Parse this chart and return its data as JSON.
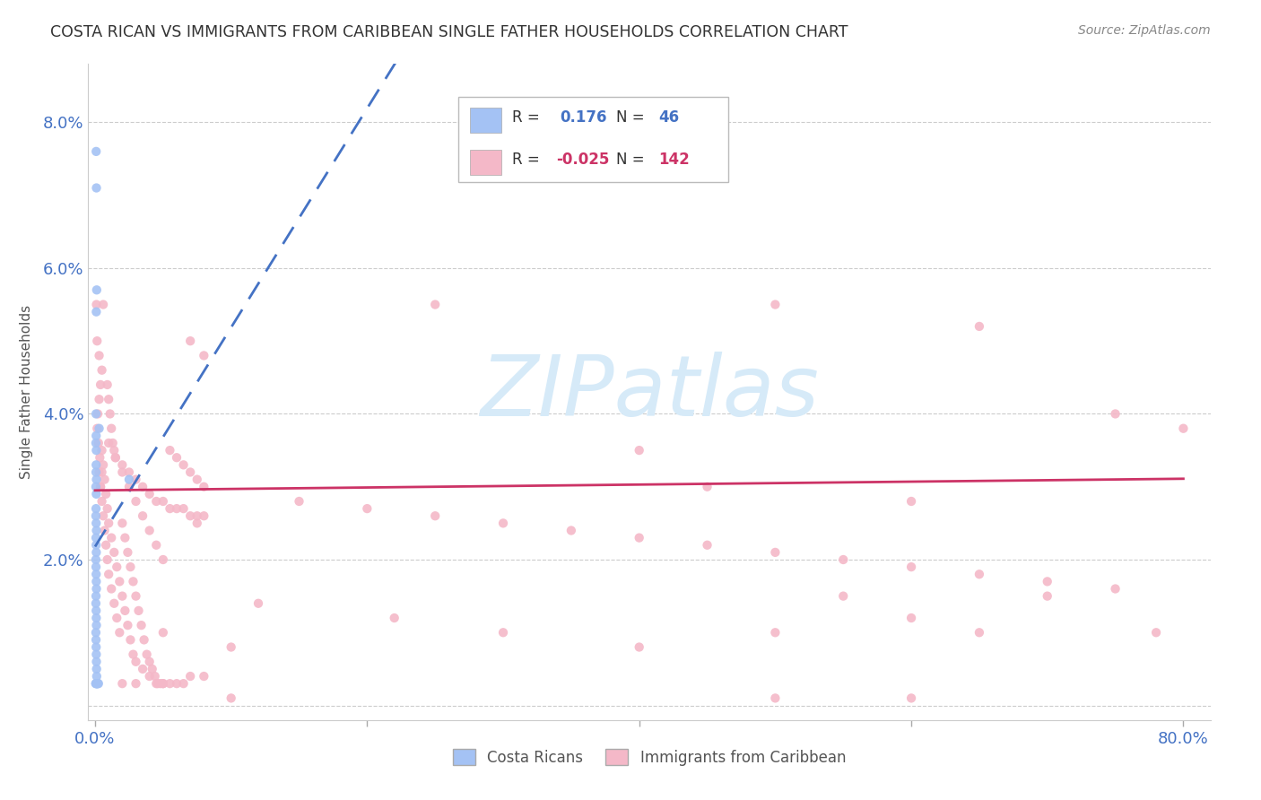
{
  "title": "COSTA RICAN VS IMMIGRANTS FROM CARIBBEAN SINGLE FATHER HOUSEHOLDS CORRELATION CHART",
  "source": "Source: ZipAtlas.com",
  "ylabel": "Single Father Households",
  "blue_color": "#a4c2f4",
  "pink_color": "#f4b8c8",
  "blue_line_color": "#4472c4",
  "pink_line_color": "#cc3366",
  "watermark_text": "ZIPatlas",
  "watermark_color": "#d6eaf8",
  "legend_blue_r": "0.176",
  "legend_blue_n": "46",
  "legend_pink_r": "-0.025",
  "legend_pink_n": "142",
  "x_lim": [
    -0.005,
    0.82
  ],
  "y_lim": [
    -0.002,
    0.088
  ],
  "y_ticks": [
    0.0,
    0.02,
    0.04,
    0.06,
    0.08
  ],
  "y_tick_labels": [
    "",
    "2.0%",
    "4.0%",
    "6.0%",
    "8.0%"
  ],
  "x_ticks": [
    0.0,
    0.2,
    0.4,
    0.6,
    0.8
  ],
  "x_tick_labels_show": [
    "0.0%",
    "",
    "",
    "",
    "80.0%"
  ],
  "blue_points": [
    [
      0.0008,
      0.076
    ],
    [
      0.001,
      0.071
    ],
    [
      0.0012,
      0.057
    ],
    [
      0.0009,
      0.054
    ],
    [
      0.0007,
      0.04
    ],
    [
      0.0008,
      0.037
    ],
    [
      0.0006,
      0.036
    ],
    [
      0.0009,
      0.035
    ],
    [
      0.0008,
      0.033
    ],
    [
      0.0007,
      0.032
    ],
    [
      0.001,
      0.031
    ],
    [
      0.0006,
      0.03
    ],
    [
      0.0009,
      0.029
    ],
    [
      0.0007,
      0.027
    ],
    [
      0.0006,
      0.026
    ],
    [
      0.0008,
      0.025
    ],
    [
      0.001,
      0.024
    ],
    [
      0.0007,
      0.023
    ],
    [
      0.0008,
      0.022
    ],
    [
      0.0009,
      0.021
    ],
    [
      0.0006,
      0.02
    ],
    [
      0.0007,
      0.019
    ],
    [
      0.0008,
      0.018
    ],
    [
      0.0009,
      0.017
    ],
    [
      0.001,
      0.016
    ],
    [
      0.0007,
      0.015
    ],
    [
      0.0006,
      0.014
    ],
    [
      0.0008,
      0.013
    ],
    [
      0.0009,
      0.012
    ],
    [
      0.001,
      0.011
    ],
    [
      0.0006,
      0.01
    ],
    [
      0.0007,
      0.009
    ],
    [
      0.0008,
      0.008
    ],
    [
      0.0009,
      0.007
    ],
    [
      0.001,
      0.006
    ],
    [
      0.0011,
      0.005
    ],
    [
      0.0012,
      0.004
    ],
    [
      0.0013,
      0.003
    ],
    [
      0.0014,
      0.003
    ],
    [
      0.0006,
      0.003
    ],
    [
      0.0005,
      0.003
    ],
    [
      0.0015,
      0.003
    ],
    [
      0.002,
      0.003
    ],
    [
      0.0025,
      0.003
    ],
    [
      0.003,
      0.038
    ],
    [
      0.025,
      0.031
    ]
  ],
  "pink_points": [
    [
      0.001,
      0.055
    ],
    [
      0.0015,
      0.05
    ],
    [
      0.003,
      0.048
    ],
    [
      0.005,
      0.046
    ],
    [
      0.004,
      0.044
    ],
    [
      0.003,
      0.042
    ],
    [
      0.002,
      0.04
    ],
    [
      0.0015,
      0.038
    ],
    [
      0.0025,
      0.036
    ],
    [
      0.0035,
      0.034
    ],
    [
      0.005,
      0.032
    ],
    [
      0.004,
      0.03
    ],
    [
      0.006,
      0.055
    ],
    [
      0.07,
      0.05
    ],
    [
      0.08,
      0.048
    ],
    [
      0.009,
      0.044
    ],
    [
      0.01,
      0.042
    ],
    [
      0.011,
      0.04
    ],
    [
      0.012,
      0.038
    ],
    [
      0.013,
      0.036
    ],
    [
      0.014,
      0.035
    ],
    [
      0.015,
      0.034
    ],
    [
      0.02,
      0.033
    ],
    [
      0.025,
      0.032
    ],
    [
      0.03,
      0.031
    ],
    [
      0.035,
      0.03
    ],
    [
      0.04,
      0.029
    ],
    [
      0.045,
      0.028
    ],
    [
      0.05,
      0.028
    ],
    [
      0.055,
      0.027
    ],
    [
      0.06,
      0.027
    ],
    [
      0.065,
      0.027
    ],
    [
      0.07,
      0.026
    ],
    [
      0.075,
      0.026
    ],
    [
      0.08,
      0.026
    ],
    [
      0.01,
      0.036
    ],
    [
      0.015,
      0.034
    ],
    [
      0.02,
      0.032
    ],
    [
      0.025,
      0.03
    ],
    [
      0.03,
      0.028
    ],
    [
      0.035,
      0.026
    ],
    [
      0.04,
      0.024
    ],
    [
      0.045,
      0.022
    ],
    [
      0.05,
      0.02
    ],
    [
      0.055,
      0.035
    ],
    [
      0.06,
      0.034
    ],
    [
      0.065,
      0.033
    ],
    [
      0.07,
      0.032
    ],
    [
      0.075,
      0.031
    ],
    [
      0.08,
      0.03
    ],
    [
      0.005,
      0.035
    ],
    [
      0.006,
      0.033
    ],
    [
      0.007,
      0.031
    ],
    [
      0.008,
      0.029
    ],
    [
      0.009,
      0.027
    ],
    [
      0.01,
      0.025
    ],
    [
      0.012,
      0.023
    ],
    [
      0.014,
      0.021
    ],
    [
      0.016,
      0.019
    ],
    [
      0.018,
      0.017
    ],
    [
      0.02,
      0.015
    ],
    [
      0.022,
      0.013
    ],
    [
      0.024,
      0.011
    ],
    [
      0.026,
      0.009
    ],
    [
      0.028,
      0.007
    ],
    [
      0.03,
      0.006
    ],
    [
      0.035,
      0.005
    ],
    [
      0.04,
      0.004
    ],
    [
      0.045,
      0.003
    ],
    [
      0.05,
      0.003
    ],
    [
      0.055,
      0.003
    ],
    [
      0.06,
      0.003
    ],
    [
      0.065,
      0.003
    ],
    [
      0.07,
      0.004
    ],
    [
      0.075,
      0.025
    ],
    [
      0.08,
      0.004
    ],
    [
      0.003,
      0.032
    ],
    [
      0.004,
      0.03
    ],
    [
      0.005,
      0.028
    ],
    [
      0.006,
      0.026
    ],
    [
      0.007,
      0.024
    ],
    [
      0.008,
      0.022
    ],
    [
      0.009,
      0.02
    ],
    [
      0.01,
      0.018
    ],
    [
      0.012,
      0.016
    ],
    [
      0.014,
      0.014
    ],
    [
      0.016,
      0.012
    ],
    [
      0.018,
      0.01
    ],
    [
      0.02,
      0.025
    ],
    [
      0.022,
      0.023
    ],
    [
      0.024,
      0.021
    ],
    [
      0.026,
      0.019
    ],
    [
      0.028,
      0.017
    ],
    [
      0.03,
      0.015
    ],
    [
      0.032,
      0.013
    ],
    [
      0.034,
      0.011
    ],
    [
      0.036,
      0.009
    ],
    [
      0.038,
      0.007
    ],
    [
      0.04,
      0.006
    ],
    [
      0.042,
      0.005
    ],
    [
      0.044,
      0.004
    ],
    [
      0.046,
      0.003
    ],
    [
      0.048,
      0.003
    ],
    [
      0.05,
      0.003
    ],
    [
      0.25,
      0.055
    ],
    [
      0.5,
      0.055
    ],
    [
      0.65,
      0.052
    ],
    [
      0.75,
      0.04
    ],
    [
      0.8,
      0.038
    ],
    [
      0.4,
      0.035
    ],
    [
      0.45,
      0.03
    ],
    [
      0.6,
      0.028
    ],
    [
      0.15,
      0.028
    ],
    [
      0.2,
      0.027
    ],
    [
      0.25,
      0.026
    ],
    [
      0.3,
      0.025
    ],
    [
      0.35,
      0.024
    ],
    [
      0.4,
      0.023
    ],
    [
      0.45,
      0.022
    ],
    [
      0.5,
      0.021
    ],
    [
      0.55,
      0.02
    ],
    [
      0.6,
      0.019
    ],
    [
      0.65,
      0.018
    ],
    [
      0.7,
      0.017
    ],
    [
      0.75,
      0.016
    ],
    [
      0.78,
      0.01
    ],
    [
      0.05,
      0.01
    ],
    [
      0.1,
      0.008
    ],
    [
      0.5,
      0.01
    ],
    [
      0.6,
      0.012
    ],
    [
      0.02,
      0.003
    ],
    [
      0.03,
      0.003
    ],
    [
      0.12,
      0.014
    ],
    [
      0.22,
      0.012
    ],
    [
      0.55,
      0.015
    ],
    [
      0.65,
      0.01
    ],
    [
      0.3,
      0.01
    ],
    [
      0.4,
      0.008
    ],
    [
      0.1,
      0.001
    ],
    [
      0.5,
      0.001
    ],
    [
      0.6,
      0.001
    ],
    [
      0.7,
      0.015
    ]
  ]
}
